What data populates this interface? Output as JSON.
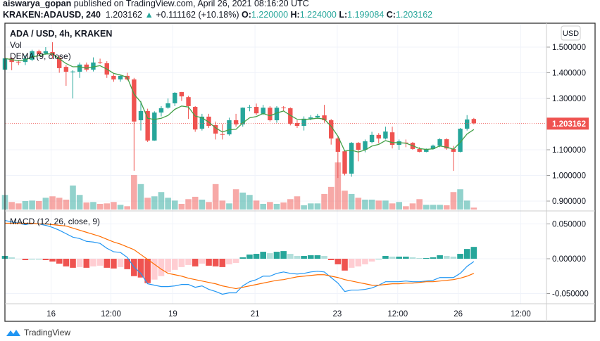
{
  "header": {
    "author": "aiswarya_gopan",
    "published_text": "published on TradingView.com, April 26, 2021 08:16:20 UTC",
    "symbol": "KRAKEN:ADAUSD, 240",
    "last": "1.203162",
    "change": "+0.111162 (+10.18%)",
    "o_label": "O:",
    "o": "1.220000",
    "h_label": "H:",
    "h": "1.224000",
    "l_label": "L:",
    "l": "1.199084",
    "c_label": "C:",
    "c": "1.203162"
  },
  "legend": {
    "title": "ADA / USD, 4h, KRAKEN",
    "vol": "Vol",
    "dema": "DEMA (9, close)",
    "macd": "MACD (12, 26, close, 9)"
  },
  "currency_button": "USD",
  "brand": "TradingView",
  "colors": {
    "up": "#26a69a",
    "down": "#ef5350",
    "up_light": "#b2dfdb",
    "down_light": "#ffcdd2",
    "dema": "#43a047",
    "macd": "#2196f3",
    "signal": "#ff6d00",
    "last_price": "#ef5350"
  },
  "chart_data": [
    {
      "type": "candlestick",
      "title": "ADA / USD, 4h, KRAKEN",
      "ylim": [
        0.87,
        1.55
      ],
      "y_ticks": [
        "1.500000",
        "1.400000",
        "1.300000",
        "1.100000",
        "1.000000",
        "0.900000"
      ],
      "last_price_label": "1.203162",
      "x_ticks": [
        "16",
        "12:00",
        "19",
        "21",
        "23",
        "12:00",
        "26",
        "12:00"
      ],
      "grid": true,
      "ohlc": [
        [
          1.412,
          1.46,
          1.4,
          1.456
        ],
        [
          1.456,
          1.46,
          1.41,
          1.442
        ],
        [
          1.443,
          1.45,
          1.43,
          1.442
        ],
        [
          1.442,
          1.47,
          1.43,
          1.456
        ],
        [
          1.451,
          1.49,
          1.445,
          1.484
        ],
        [
          1.484,
          1.49,
          1.465,
          1.473
        ],
        [
          1.475,
          1.5,
          1.47,
          1.484
        ],
        [
          1.481,
          1.519,
          1.455,
          1.47
        ],
        [
          1.459,
          1.465,
          1.4,
          1.418
        ],
        [
          1.423,
          1.43,
          1.349,
          1.404
        ],
        [
          1.404,
          1.41,
          1.3,
          1.405
        ],
        [
          1.404,
          1.44,
          1.38,
          1.432
        ],
        [
          1.432,
          1.44,
          1.405,
          1.412
        ],
        [
          1.412,
          1.46,
          1.405,
          1.44
        ],
        [
          1.441,
          1.455,
          1.435,
          1.44
        ],
        [
          1.437,
          1.445,
          1.38,
          1.393
        ],
        [
          1.388,
          1.395,
          1.365,
          1.374
        ],
        [
          1.374,
          1.39,
          1.365,
          1.388
        ],
        [
          1.388,
          1.4,
          1.37,
          1.374
        ],
        [
          1.374,
          1.38,
          1.018,
          1.21
        ],
        [
          1.215,
          1.29,
          1.175,
          1.251
        ],
        [
          1.251,
          1.26,
          1.13,
          1.136
        ],
        [
          1.136,
          1.25,
          1.135,
          1.245
        ],
        [
          1.245,
          1.27,
          1.23,
          1.262
        ],
        [
          1.264,
          1.3,
          1.26,
          1.281
        ],
        [
          1.281,
          1.325,
          1.27,
          1.322
        ],
        [
          1.325,
          1.325,
          1.29,
          1.308
        ],
        [
          1.305,
          1.31,
          1.22,
          1.27
        ],
        [
          1.267,
          1.27,
          1.17,
          1.179
        ],
        [
          1.182,
          1.24,
          1.175,
          1.229
        ],
        [
          1.229,
          1.24,
          1.185,
          1.193
        ],
        [
          1.196,
          1.21,
          1.14,
          1.163
        ],
        [
          1.161,
          1.2,
          1.14,
          1.16
        ],
        [
          1.16,
          1.225,
          1.155,
          1.215
        ],
        [
          1.215,
          1.24,
          1.19,
          1.199
        ],
        [
          1.199,
          1.265,
          1.19,
          1.264
        ],
        [
          1.266,
          1.275,
          1.25,
          1.267
        ],
        [
          1.267,
          1.28,
          1.235,
          1.242
        ],
        [
          1.24,
          1.275,
          1.235,
          1.264
        ],
        [
          1.264,
          1.27,
          1.21,
          1.215
        ],
        [
          1.215,
          1.27,
          1.205,
          1.264
        ],
        [
          1.265,
          1.27,
          1.25,
          1.264
        ],
        [
          1.262,
          1.265,
          1.195,
          1.201
        ],
        [
          1.204,
          1.215,
          1.185,
          1.193
        ],
        [
          1.193,
          1.23,
          1.175,
          1.221
        ],
        [
          1.221,
          1.235,
          1.215,
          1.226
        ],
        [
          1.226,
          1.24,
          1.22,
          1.232
        ],
        [
          1.234,
          1.275,
          1.205,
          1.215
        ],
        [
          1.215,
          1.22,
          1.12,
          1.144
        ],
        [
          1.144,
          1.15,
          0.99,
          1.092
        ],
        [
          1.094,
          1.1,
          1.0,
          1.007
        ],
        [
          1.007,
          1.13,
          0.995,
          1.127
        ],
        [
          1.127,
          1.13,
          1.055,
          1.1
        ],
        [
          1.1,
          1.14,
          1.09,
          1.133
        ],
        [
          1.13,
          1.17,
          1.125,
          1.158
        ],
        [
          1.158,
          1.165,
          1.125,
          1.144
        ],
        [
          1.144,
          1.19,
          1.14,
          1.171
        ],
        [
          1.168,
          1.19,
          1.105,
          1.119
        ],
        [
          1.119,
          1.14,
          1.1,
          1.133
        ],
        [
          1.128,
          1.14,
          1.11,
          1.127
        ],
        [
          1.127,
          1.13,
          1.1,
          1.103
        ],
        [
          1.103,
          1.11,
          1.09,
          1.092
        ],
        [
          1.092,
          1.105,
          1.09,
          1.103
        ],
        [
          1.103,
          1.12,
          1.1,
          1.116
        ],
        [
          1.116,
          1.145,
          1.11,
          1.141
        ],
        [
          1.141,
          1.145,
          1.1,
          1.105
        ],
        [
          1.103,
          1.115,
          1.018,
          1.092
        ],
        [
          1.092,
          1.185,
          1.09,
          1.182
        ],
        [
          1.182,
          1.235,
          1.175,
          1.218
        ],
        [
          1.22,
          1.224,
          1.199,
          1.203
        ]
      ],
      "volume_relative_pct": [
        31,
        16,
        13,
        18,
        19,
        18,
        25,
        28,
        25,
        21,
        51,
        31,
        15,
        16,
        12,
        13,
        16,
        10,
        7,
        73,
        54,
        25,
        28,
        37,
        25,
        19,
        12,
        22,
        27,
        21,
        16,
        54,
        19,
        13,
        43,
        36,
        31,
        19,
        12,
        16,
        12,
        15,
        22,
        28,
        9,
        13,
        13,
        33,
        48,
        100,
        40,
        33,
        25,
        21,
        21,
        19,
        19,
        13,
        16,
        7,
        13,
        22,
        10,
        10,
        10,
        9,
        37,
        43,
        19,
        4
      ]
    },
    {
      "type": "macd",
      "title": "MACD (12, 26, close, 9)",
      "ylim": [
        -0.065,
        0.065
      ],
      "y_ticks": [
        "0.050000",
        "0.000000",
        "-0.050000"
      ],
      "histogram": [
        0.004,
        0.002,
        0,
        -0.002,
        0,
        0,
        -0.002,
        -0.004,
        -0.007,
        -0.011,
        -0.013,
        -0.012,
        -0.013,
        -0.011,
        -0.01,
        -0.013,
        -0.014,
        -0.012,
        -0.015,
        -0.025,
        -0.027,
        -0.035,
        -0.03,
        -0.025,
        -0.019,
        -0.016,
        -0.012,
        -0.009,
        -0.011,
        -0.007,
        -0.01,
        -0.011,
        -0.012,
        -0.008,
        -0.006,
        0.002,
        0.006,
        0.007,
        0.01,
        0.008,
        0.01,
        0.011,
        0.007,
        0.004,
        0.004,
        0.005,
        0.005,
        0.004,
        -0.002,
        -0.008,
        -0.017,
        -0.013,
        -0.011,
        -0.008,
        -0.004,
        0,
        0.004,
        0.003,
        0.003,
        0.003,
        0.002,
        0.001,
        0.001,
        0.002,
        0.005,
        0.004,
        0.003,
        0.007,
        0.014,
        0.017
      ],
      "macd": [
        0.055,
        0.053,
        0.051,
        0.049,
        0.051,
        0.05,
        0.048,
        0.045,
        0.041,
        0.036,
        0.031,
        0.029,
        0.025,
        0.024,
        0.022,
        0.015,
        0.01,
        0.009,
        0.002,
        -0.012,
        -0.021,
        -0.036,
        -0.038,
        -0.04,
        -0.04,
        -0.039,
        -0.037,
        -0.037,
        -0.041,
        -0.039,
        -0.044,
        -0.047,
        -0.051,
        -0.049,
        -0.049,
        -0.039,
        -0.033,
        -0.03,
        -0.025,
        -0.025,
        -0.021,
        -0.019,
        -0.021,
        -0.022,
        -0.021,
        -0.019,
        -0.018,
        -0.019,
        -0.027,
        -0.035,
        -0.047,
        -0.045,
        -0.045,
        -0.044,
        -0.042,
        -0.038,
        -0.033,
        -0.033,
        -0.033,
        -0.032,
        -0.033,
        -0.033,
        -0.032,
        -0.031,
        -0.027,
        -0.027,
        -0.027,
        -0.021,
        -0.011,
        -0.004
      ],
      "signal": [
        0.051,
        0.051,
        0.051,
        0.051,
        0.051,
        0.05,
        0.05,
        0.049,
        0.048,
        0.047,
        0.044,
        0.041,
        0.038,
        0.035,
        0.032,
        0.028,
        0.024,
        0.021,
        0.017,
        0.013,
        0.006,
        -0.001,
        -0.008,
        -0.015,
        -0.021,
        -0.023,
        -0.025,
        -0.028,
        -0.03,
        -0.032,
        -0.034,
        -0.036,
        -0.039,
        -0.041,
        -0.043,
        -0.041,
        -0.039,
        -0.037,
        -0.035,
        -0.033,
        -0.031,
        -0.03,
        -0.028,
        -0.026,
        -0.025,
        -0.024,
        -0.023,
        -0.023,
        -0.025,
        -0.027,
        -0.03,
        -0.032,
        -0.034,
        -0.036,
        -0.038,
        -0.038,
        -0.037,
        -0.036,
        -0.036,
        -0.035,
        -0.035,
        -0.034,
        -0.033,
        -0.033,
        -0.032,
        -0.031,
        -0.03,
        -0.028,
        -0.025,
        -0.021
      ]
    }
  ]
}
